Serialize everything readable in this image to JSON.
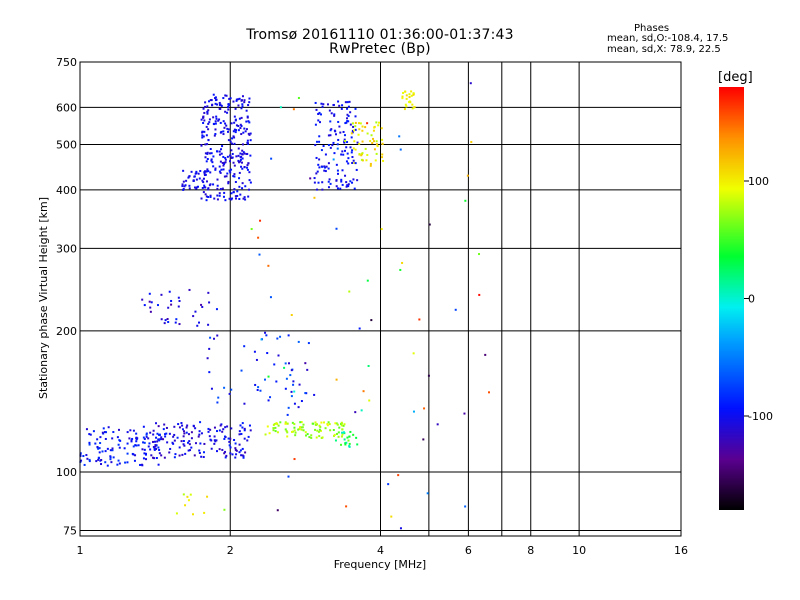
{
  "header": {
    "title_line1": "Tromsø 20161110 01:36:00-01:37:43",
    "title_line2": "RwPretec (Bp)",
    "stats_title": "Phases",
    "stats_o": "mean, sd,O:-108.4, 17.5",
    "stats_x": "mean, sd,X:  78.9, 22.5"
  },
  "colorbar": {
    "label": "[deg]",
    "ticks": [
      {
        "value": 100,
        "label": "100"
      },
      {
        "value": 0,
        "label": "0"
      },
      {
        "value": -100,
        "label": "-100"
      }
    ],
    "range": [
      -180,
      180
    ]
  },
  "chart_data": {
    "type": "scatter",
    "title": "Tromsø 20161110 01:36:00-01:37:43",
    "subtitle": "RwPretec (Bp)",
    "xlabel": "Frequency [MHz]",
    "ylabel": "Stationary phase Virtual Height [km]",
    "x_scale": "log",
    "y_scale": "log",
    "xlim": [
      1,
      16
    ],
    "ylim": [
      73,
      750
    ],
    "x_ticks": [
      1,
      2,
      4,
      6,
      8,
      10,
      16
    ],
    "x_tick_labels": [
      "1",
      "2",
      "4",
      "6",
      "8",
      "10",
      "16"
    ],
    "y_ticks": [
      75,
      100,
      200,
      300,
      400,
      500,
      600,
      750
    ],
    "y_tick_labels": [
      "75",
      "100",
      "200",
      "300",
      "400",
      "500",
      "600",
      "750"
    ],
    "grid": true,
    "color_scale": "rainbow, phase in degrees from -180 (black) to 180 (red)",
    "clusters": [
      {
        "f_range": [
          1.0,
          1.45
        ],
        "h_range": [
          103,
          125
        ],
        "phase_range": [
          -115,
          -75
        ],
        "n": 130
      },
      {
        "f_range": [
          1.4,
          2.2
        ],
        "h_range": [
          107,
          128
        ],
        "phase_range": [
          -125,
          -85
        ],
        "n": 150
      },
      {
        "f_range": [
          1.75,
          2.2
        ],
        "h_range": [
          380,
          640
        ],
        "phase_range": [
          -115,
          -90
        ],
        "n": 300
      },
      {
        "f_range": [
          1.6,
          1.8
        ],
        "h_range": [
          395,
          440
        ],
        "phase_range": [
          -112,
          -95
        ],
        "n": 40
      },
      {
        "f_range": [
          2.95,
          3.6
        ],
        "h_range": [
          400,
          620
        ],
        "phase_range": [
          -112,
          -85
        ],
        "n": 140
      },
      {
        "f_range": [
          3.5,
          4.05
        ],
        "h_range": [
          450,
          560
        ],
        "phase_range": [
          75,
          120
        ],
        "n": 55
      },
      {
        "f_range": [
          4.4,
          4.7
        ],
        "h_range": [
          590,
          650
        ],
        "phase_range": [
          88,
          112
        ],
        "n": 25
      },
      {
        "f_range": [
          2.35,
          3.4
        ],
        "h_range": [
          118,
          128
        ],
        "phase_range": [
          55,
          95
        ],
        "n": 90
      },
      {
        "f_range": [
          3.25,
          3.6
        ],
        "h_range": [
          113,
          122
        ],
        "phase_range": [
          0,
          70
        ],
        "n": 20
      },
      {
        "f_range": [
          1.3,
          1.9
        ],
        "h_range": [
          205,
          245
        ],
        "phase_range": [
          -130,
          -85
        ],
        "n": 35
      },
      {
        "f_range": [
          1.8,
          2.95
        ],
        "h_range": [
          135,
          200
        ],
        "phase_range": [
          -115,
          -60
        ],
        "n": 55
      },
      {
        "f_range": [
          1.55,
          2.0
        ],
        "h_range": [
          80,
          90
        ],
        "phase_range": [
          60,
          110
        ],
        "n": 10
      },
      {
        "f_range": [
          2.2,
          6.9
        ],
        "h_range": [
          75,
          680
        ],
        "phase_range": [
          -180,
          180
        ],
        "n": 70
      }
    ]
  }
}
